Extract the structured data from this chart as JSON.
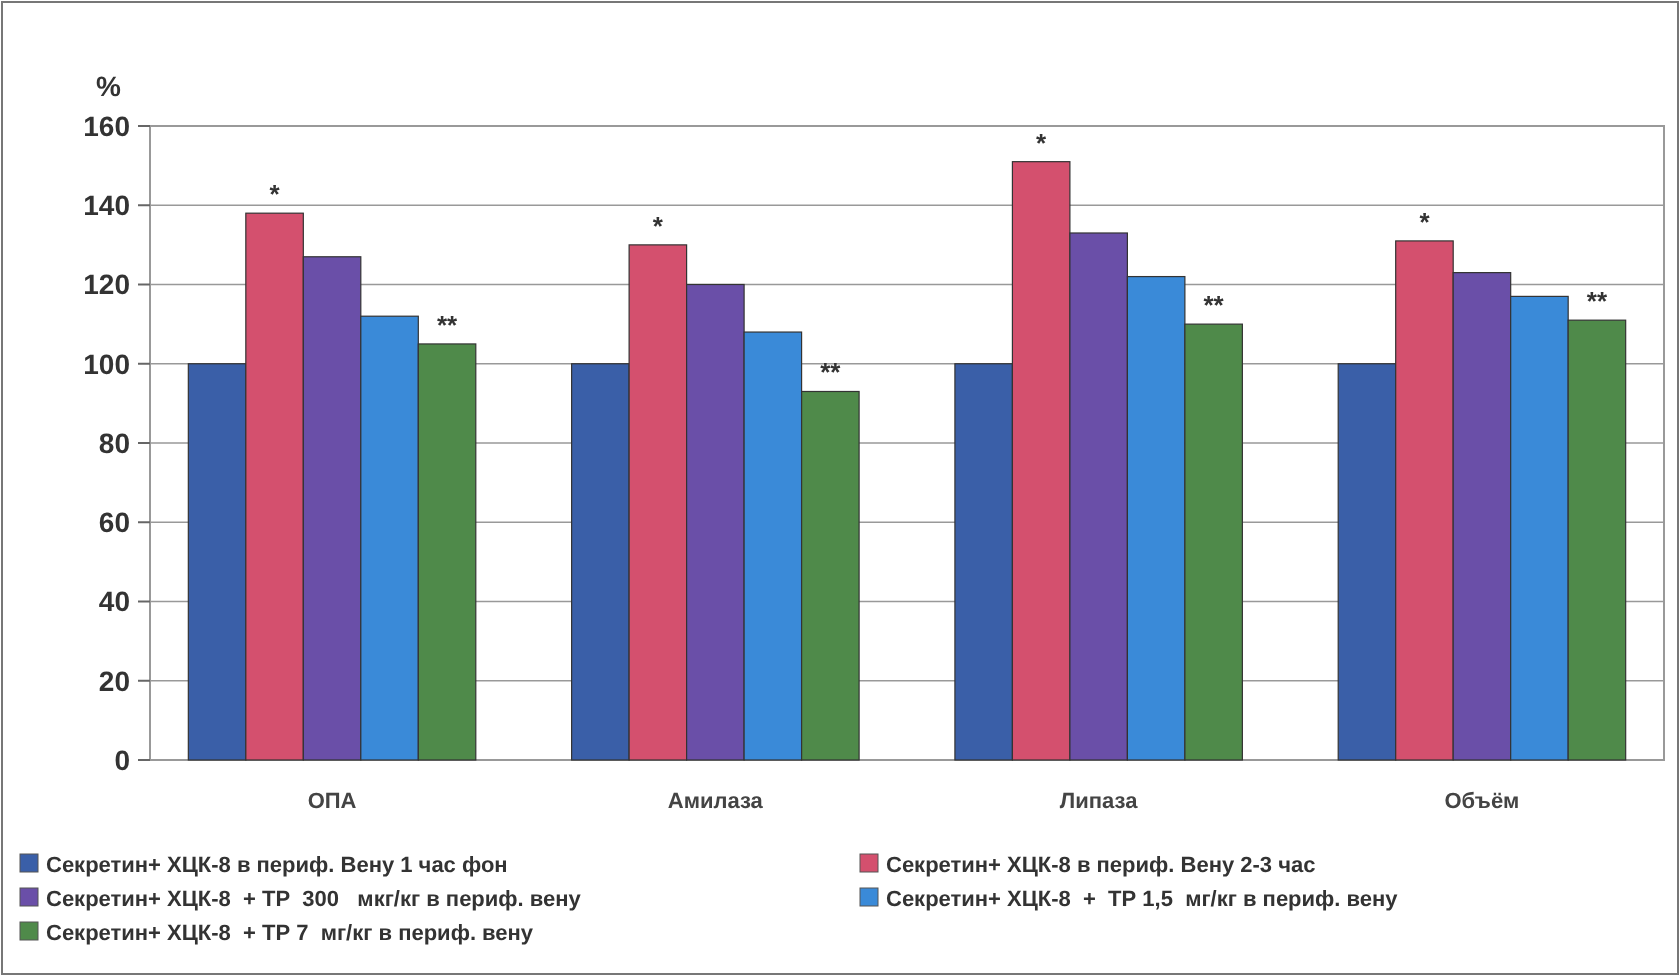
{
  "chart_data": {
    "type": "bar",
    "ylabel": "%",
    "categories": [
      "ОПА",
      "Амилаза",
      "Липаза",
      "Объём"
    ],
    "series": [
      {
        "name": "Секретин+ ХЦК-8 в периф. Вену 1 час фон",
        "color": "#3a5fa8",
        "values": [
          100,
          100,
          100,
          100
        ]
      },
      {
        "name": "Секретин+ ХЦК-8 в периф. Вену 2-3 час",
        "color": "#d4506e",
        "values": [
          138,
          130,
          151,
          131
        ],
        "value_labels": [
          "*",
          "*",
          "*",
          "*"
        ]
      },
      {
        "name": "Секретин+ ХЦК-8  + ТР  300   мкг/кг в периф. вену",
        "color": "#6a4fa8",
        "values": [
          127,
          120,
          133,
          123
        ]
      },
      {
        "name": "Секретин+ ХЦК-8  +  ТР 1,5  мг/кг в периф. вену",
        "color": "#3a8ad8",
        "values": [
          112,
          108,
          122,
          117
        ]
      },
      {
        "name": "Секретин+ ХЦК-8  + ТР 7  мг/кг в периф. вену",
        "color": "#4f8a4a",
        "values": [
          105,
          93,
          110,
          111
        ],
        "value_labels": [
          "**",
          "**",
          "**",
          "**"
        ]
      }
    ],
    "ylim": [
      0,
      160
    ],
    "yticks": [
      0,
      20,
      40,
      60,
      80,
      100,
      120,
      140,
      160
    ],
    "grid": "y",
    "legend": "bottom"
  }
}
